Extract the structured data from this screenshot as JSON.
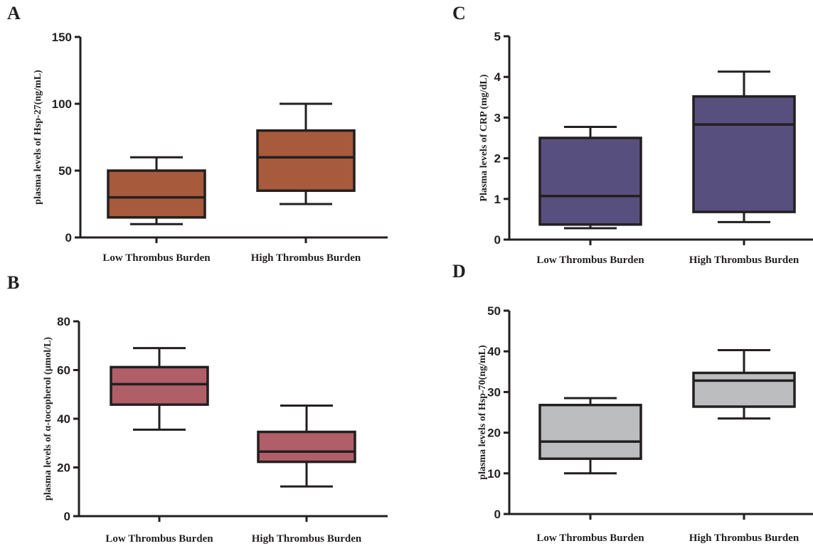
{
  "chart_data": [
    {
      "panel": "A",
      "type": "box",
      "ylabel": "plasma levels of Hsp-27(ng/mL)",
      "ylim": [
        0,
        150
      ],
      "yticks": [
        0,
        50,
        100,
        150
      ],
      "categories": [
        "Low Thrombus Burden",
        "High Thrombus Burden"
      ],
      "boxes": [
        {
          "whisker_low": 10,
          "q1": 15,
          "median": 30,
          "q3": 50,
          "whisker_high": 60
        },
        {
          "whisker_low": 25,
          "q1": 35,
          "median": 60,
          "q3": 80,
          "whisker_high": 100
        }
      ],
      "color": "#a85a3c"
    },
    {
      "panel": "C",
      "type": "box",
      "ylabel": "Plasma levels of CRP (mg/dL)",
      "ylim": [
        0,
        5
      ],
      "yticks": [
        0,
        1,
        2,
        3,
        4,
        5
      ],
      "categories": [
        "Low Thrombus Burden",
        "High Thrombus Burden"
      ],
      "boxes": [
        {
          "whisker_low": 0.28,
          "q1": 0.37,
          "median": 1.07,
          "q3": 2.5,
          "whisker_high": 2.77
        },
        {
          "whisker_low": 0.43,
          "q1": 0.68,
          "median": 2.83,
          "q3": 3.52,
          "whisker_high": 4.13
        }
      ],
      "color": "#57507e"
    },
    {
      "panel": "B",
      "type": "box",
      "ylabel": "plasma levels of α-tocopherol (μmol/L)",
      "ylim": [
        0,
        80
      ],
      "yticks": [
        0,
        20,
        40,
        60,
        80
      ],
      "categories": [
        "Low Thrombus Burden",
        "High Thrombus Burden"
      ],
      "boxes": [
        {
          "whisker_low": 35.5,
          "q1": 45.8,
          "median": 54.2,
          "q3": 61.2,
          "whisker_high": 69
        },
        {
          "whisker_low": 12.2,
          "q1": 22.3,
          "median": 26.5,
          "q3": 34.6,
          "whisker_high": 45.4
        }
      ],
      "color": "#b05e68"
    },
    {
      "panel": "D",
      "type": "box",
      "ylabel": "plasma levels of Hsp-70(ng/mL)",
      "ylim": [
        0,
        50
      ],
      "yticks": [
        0,
        10,
        20,
        30,
        40,
        50
      ],
      "categories": [
        "Low Thrombus Burden",
        "High Thrombus Burden"
      ],
      "boxes": [
        {
          "whisker_low": 10,
          "q1": 13.6,
          "median": 17.8,
          "q3": 26.8,
          "whisker_high": 28.5
        },
        {
          "whisker_low": 23.5,
          "q1": 26.4,
          "median": 32.8,
          "q3": 34.7,
          "whisker_high": 40.3
        }
      ],
      "color": "#bcbdbf"
    }
  ]
}
